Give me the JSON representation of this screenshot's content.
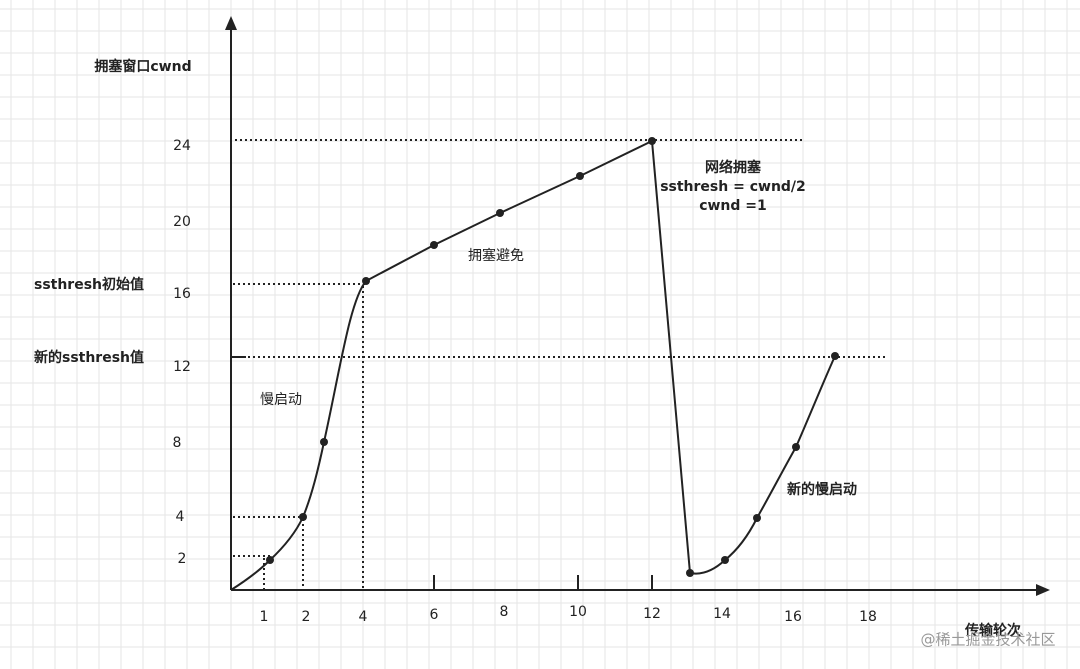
{
  "y_axis": {
    "title": "拥塞窗口cwnd",
    "tick_labels": [
      "24",
      "20",
      "16",
      "12",
      "8",
      "4",
      "2"
    ],
    "side_labels": [
      "ssthresh初始值",
      "新的ssthresh值"
    ]
  },
  "x_axis": {
    "title": "传输轮次",
    "tick_labels": [
      "1",
      "2",
      "4",
      "6",
      "8",
      "10",
      "12",
      "14",
      "16",
      "18"
    ]
  },
  "annotations": {
    "congestion": [
      "网络拥塞",
      "ssthresh = cwnd/2",
      "cwnd =1"
    ],
    "avoidance": "拥塞避免",
    "slow_start": "慢启动",
    "new_slow_start": "新的慢启动"
  },
  "watermark": "@稀土掘金技术社区"
}
